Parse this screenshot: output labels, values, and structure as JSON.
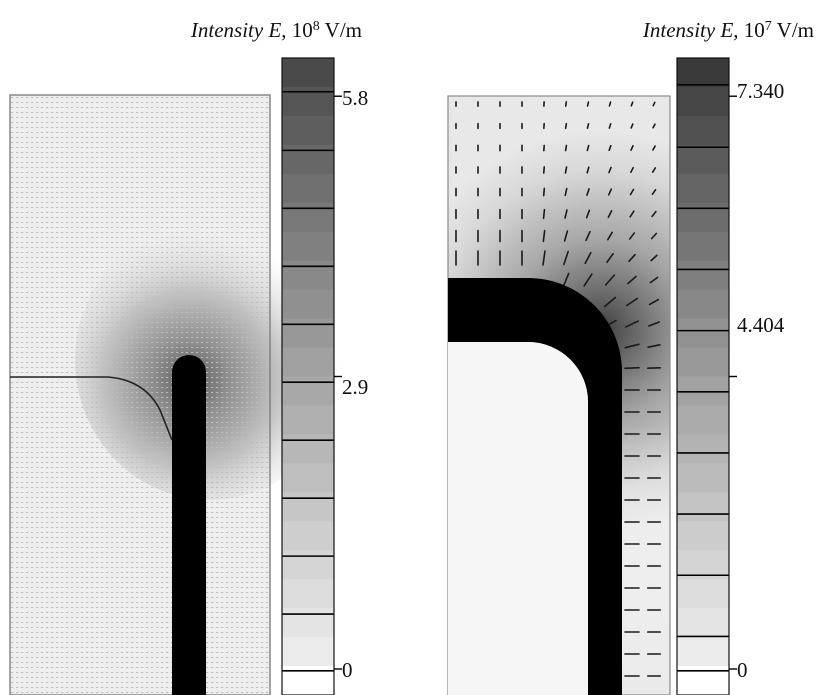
{
  "figure": {
    "left_panel": {
      "title": {
        "symbol": "Intensity E",
        "base": "10",
        "exponent": "8",
        "unit": "V/m"
      },
      "colorbar": {
        "min": 0,
        "max": 5.8,
        "tick_labels": [
          "5.8",
          "2.9",
          "0"
        ]
      },
      "colors": {
        "darkest": "#4a4a4a",
        "lightest": "#f2f2f2",
        "electrode": "#000000"
      }
    },
    "right_panel": {
      "title": {
        "symbol": "Intensity E",
        "base": "10",
        "exponent": "7",
        "unit": "V/m"
      },
      "colorbar": {
        "min": 0,
        "max": 7.34,
        "tick_labels": [
          "7.340",
          "4.404",
          "0"
        ]
      },
      "colors": {
        "darkest": "#3a3a3a",
        "lightest": "#f4f4f4",
        "electrode": "#000000"
      }
    }
  }
}
